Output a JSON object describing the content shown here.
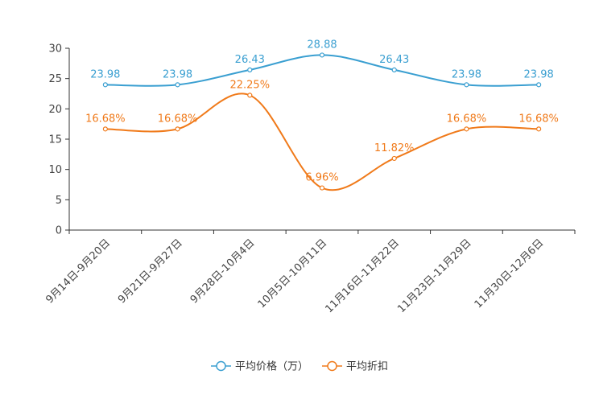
{
  "chart_data": {
    "type": "line",
    "title": "",
    "xlabel": "",
    "ylabel": "",
    "ylim": [
      0,
      30
    ],
    "yticks": [
      0,
      5,
      10,
      15,
      20,
      25,
      30
    ],
    "grid": false,
    "legend_position": "bottom-center",
    "categories": [
      "9月14日-9月20日",
      "9月21日-9月27日",
      "9月28日-10月4日",
      "10月5日-10月11日",
      "11月16日-11月22日",
      "11月23日-11月29日",
      "11月30日-12月6日"
    ],
    "series": [
      {
        "name": "平均价格（万）",
        "color": "#3a9fd1",
        "values": [
          23.98,
          23.98,
          26.43,
          28.88,
          26.43,
          23.98,
          23.98
        ],
        "labels": [
          "23.98",
          "23.98",
          "26.43",
          "28.88",
          "26.43",
          "23.98",
          "23.98"
        ]
      },
      {
        "name": "平均折扣",
        "color": "#f07a1a",
        "values": [
          16.68,
          16.68,
          22.25,
          6.96,
          11.82,
          16.68,
          16.68
        ],
        "labels": [
          "16.68%",
          "16.68%",
          "22.25%",
          "6.96%",
          "11.82%",
          "16.68%",
          "16.68%"
        ]
      }
    ]
  }
}
